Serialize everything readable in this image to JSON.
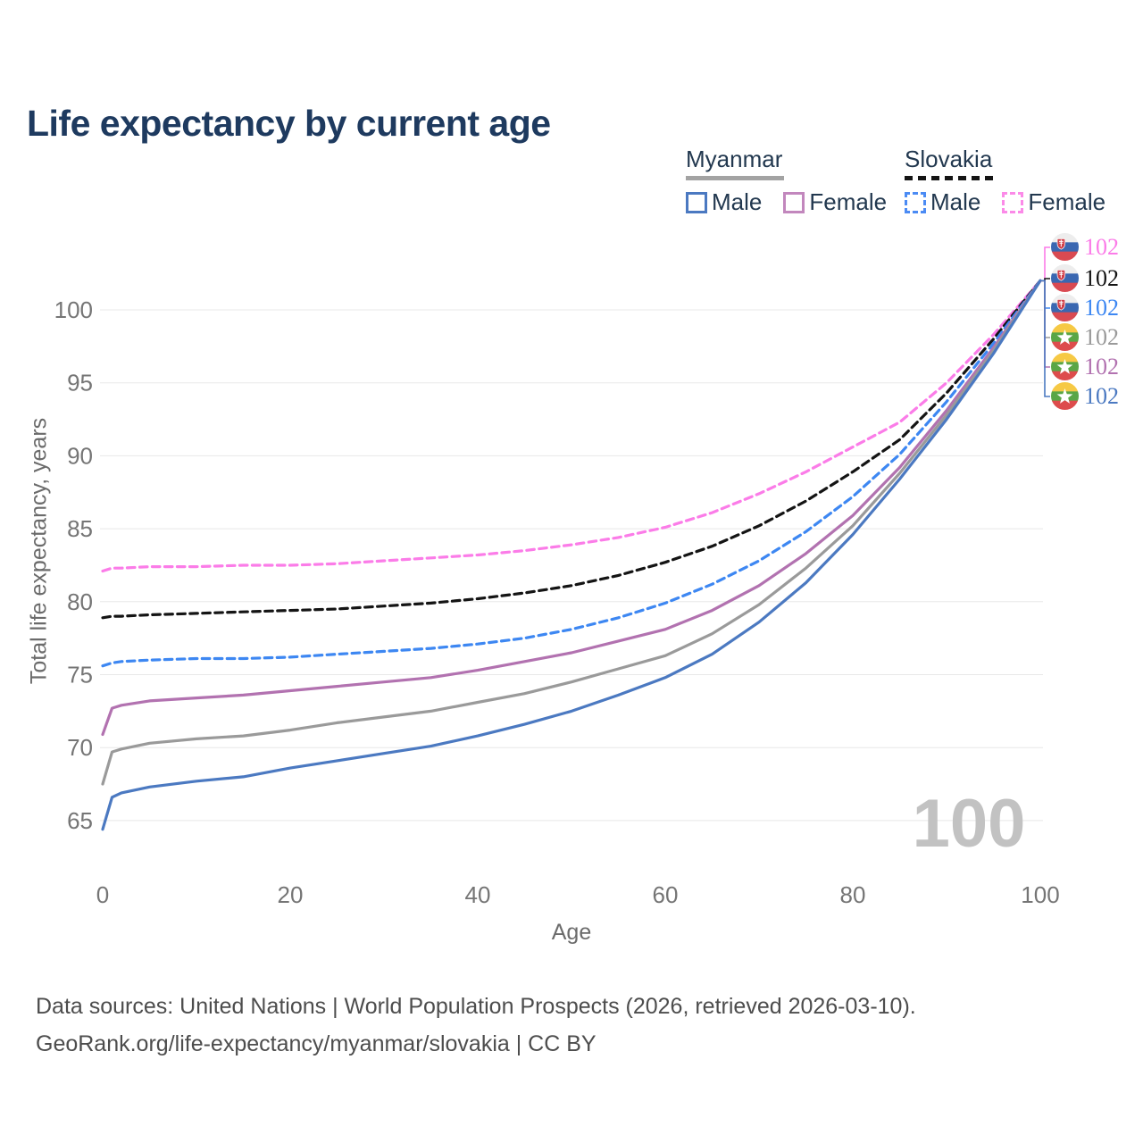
{
  "title": "Life expectancy by current age",
  "legend": {
    "groups": [
      {
        "country": "Myanmar",
        "line_style": "solid",
        "swatch_color": "#a3a3a3",
        "items": [
          {
            "label": "Male",
            "color": "#4b79c1",
            "dashed": false
          },
          {
            "label": "Female",
            "color": "#c287bd",
            "dashed": false
          }
        ]
      },
      {
        "country": "Slovakia",
        "line_style": "dashed",
        "swatch_color": "#141414",
        "items": [
          {
            "label": "Male",
            "color": "#4b8bf4",
            "dashed": true
          },
          {
            "label": "Female",
            "color": "#fb8ae8",
            "dashed": true
          }
        ]
      }
    ]
  },
  "y_axis": {
    "label": "Total life expectancy, years",
    "ticks": [
      65,
      70,
      75,
      80,
      85,
      90,
      95,
      100
    ]
  },
  "x_axis": {
    "label": "Age",
    "ticks": [
      0,
      20,
      40,
      60,
      80,
      100
    ]
  },
  "watermark": "100",
  "end_labels": [
    {
      "value": "102",
      "series": "Slovakia Female",
      "color": "#fb7ce8",
      "flag": "slovakia"
    },
    {
      "value": "102",
      "series": "Slovakia Both sexes",
      "color": "#141414",
      "flag": "slovakia"
    },
    {
      "value": "102",
      "series": "Slovakia Male",
      "color": "#3d87f2",
      "flag": "slovakia"
    },
    {
      "value": "102",
      "series": "Myanmar Both sexes",
      "color": "#9a9a9a",
      "flag": "myanmar"
    },
    {
      "value": "102",
      "series": "Myanmar Female",
      "color": "#b272b0",
      "flag": "myanmar"
    },
    {
      "value": "102",
      "series": "Myanmar Male",
      "color": "#4b79c1",
      "flag": "myanmar"
    }
  ],
  "flags": {
    "slovakia": {
      "stripes": [
        "#ededed",
        "#3a67b1",
        "#d94a52"
      ],
      "shield": "#d0404a",
      "cross": "#ffffff"
    },
    "myanmar": {
      "stripes": [
        "#f6c945",
        "#5aa646",
        "#dd4c4c"
      ],
      "star": "#ffffff"
    }
  },
  "footer": {
    "line1": "Data sources: United Nations | World Population Prospects (2026, retrieved 2026-03-10).",
    "line2": "GeoRank.org/life-expectancy/myanmar/slovakia | CC BY"
  },
  "chart_data": {
    "type": "line",
    "title": "Life expectancy by current age",
    "xlabel": "Age",
    "ylabel": "Total life expectancy, years",
    "xlim": [
      0,
      100
    ],
    "ylim": [
      63,
      103
    ],
    "grid": "horizontal",
    "x": [
      0,
      1,
      2,
      5,
      10,
      15,
      20,
      25,
      30,
      35,
      40,
      45,
      50,
      55,
      60,
      65,
      70,
      75,
      80,
      85,
      90,
      95,
      100
    ],
    "series": [
      {
        "id": "slovakia-female",
        "name": "Slovakia Female",
        "color": "#fb7ce8",
        "dashed": true,
        "values": [
          82.1,
          82.3,
          82.3,
          82.4,
          82.4,
          82.5,
          82.5,
          82.6,
          82.8,
          83.0,
          83.2,
          83.5,
          83.9,
          84.4,
          85.1,
          86.1,
          87.4,
          88.9,
          90.6,
          92.3,
          95.0,
          98.3,
          102
        ]
      },
      {
        "id": "slovakia-both",
        "name": "Slovakia Both sexes",
        "color": "#141414",
        "dashed": true,
        "values": [
          78.9,
          79.0,
          79.0,
          79.1,
          79.2,
          79.3,
          79.4,
          79.5,
          79.7,
          79.9,
          80.2,
          80.6,
          81.1,
          81.8,
          82.7,
          83.8,
          85.2,
          86.9,
          88.9,
          91.1,
          94.3,
          98.0,
          102
        ]
      },
      {
        "id": "slovakia-male",
        "name": "Slovakia Male",
        "color": "#3d87f2",
        "dashed": true,
        "values": [
          75.6,
          75.8,
          75.9,
          76.0,
          76.1,
          76.1,
          76.2,
          76.4,
          76.6,
          76.8,
          77.1,
          77.5,
          78.1,
          78.9,
          79.9,
          81.2,
          82.8,
          84.8,
          87.2,
          90.1,
          93.7,
          97.7,
          102
        ]
      },
      {
        "id": "myanmar-female",
        "name": "Myanmar Female",
        "color": "#b272b0",
        "dashed": false,
        "values": [
          70.9,
          72.7,
          72.9,
          73.2,
          73.4,
          73.6,
          73.9,
          74.2,
          74.5,
          74.8,
          75.3,
          75.9,
          76.5,
          77.3,
          78.1,
          79.4,
          81.1,
          83.3,
          85.9,
          89.2,
          93.1,
          97.4,
          102
        ]
      },
      {
        "id": "myanmar-both",
        "name": "Myanmar Both sexes",
        "color": "#9a9a9a",
        "dashed": false,
        "values": [
          67.5,
          69.7,
          69.9,
          70.3,
          70.6,
          70.8,
          71.2,
          71.7,
          72.1,
          72.5,
          73.1,
          73.7,
          74.5,
          75.4,
          76.3,
          77.8,
          79.8,
          82.3,
          85.2,
          88.8,
          92.8,
          97.2,
          102
        ]
      },
      {
        "id": "myanmar-male",
        "name": "Myanmar Male",
        "color": "#4b79c1",
        "dashed": false,
        "values": [
          64.4,
          66.6,
          66.9,
          67.3,
          67.7,
          68.0,
          68.6,
          69.1,
          69.6,
          70.1,
          70.8,
          71.6,
          72.5,
          73.6,
          74.8,
          76.4,
          78.6,
          81.3,
          84.6,
          88.4,
          92.5,
          97.0,
          102
        ]
      }
    ]
  }
}
